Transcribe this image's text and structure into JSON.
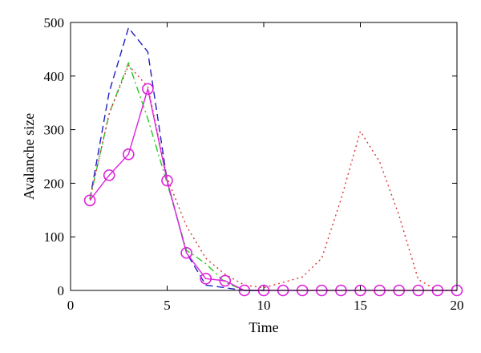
{
  "chart_data": {
    "type": "line",
    "xlabel": "Time",
    "ylabel": "Avalanche size",
    "xlim": [
      0,
      20
    ],
    "ylim": [
      0,
      500
    ],
    "xticks": [
      0,
      5,
      10,
      15,
      20
    ],
    "yticks": [
      0,
      100,
      200,
      300,
      400,
      500
    ],
    "grid": false,
    "series": [
      {
        "color": "#1f1fbf",
        "dash": "dashed",
        "marker": "none",
        "x": [
          1,
          2,
          3,
          4,
          5,
          6,
          7,
          8,
          9,
          10
        ],
        "y": [
          170,
          370,
          490,
          445,
          205,
          70,
          10,
          5,
          0,
          0
        ]
      },
      {
        "color": "#22cc22",
        "dash": "dashdot",
        "marker": "none",
        "x": [
          1,
          2,
          3,
          4,
          5,
          6,
          7,
          8,
          9,
          10
        ],
        "y": [
          170,
          330,
          425,
          320,
          200,
          75,
          50,
          15,
          0,
          0
        ]
      },
      {
        "color": "#dd3333",
        "dash": "dotted",
        "marker": "none",
        "x": [
          1,
          2,
          3,
          4,
          5,
          6,
          7,
          8,
          9,
          10,
          11,
          12,
          13,
          14,
          15,
          16,
          17,
          18,
          19,
          20
        ],
        "y": [
          170,
          330,
          420,
          380,
          210,
          120,
          60,
          30,
          10,
          5,
          15,
          25,
          60,
          170,
          297,
          240,
          140,
          20,
          0,
          0
        ]
      },
      {
        "color": "#dd22dd",
        "dash": "solid",
        "marker": "circle",
        "x": [
          1,
          2,
          3,
          4,
          5,
          6,
          7,
          8,
          9,
          10,
          11,
          12,
          13,
          14,
          15,
          16,
          17,
          18,
          19,
          20
        ],
        "y": [
          168,
          215,
          254,
          376,
          205,
          70,
          22,
          18,
          0,
          0,
          0,
          0,
          0,
          0,
          0,
          0,
          0,
          0,
          0,
          0
        ]
      }
    ]
  }
}
